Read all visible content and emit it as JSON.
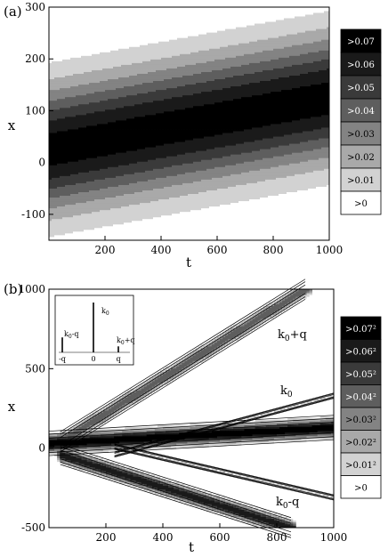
{
  "chart_data": [
    {
      "type": "heatmap",
      "panel_label": "(a)",
      "xlabel": "t",
      "ylabel": "x",
      "xlim": [
        0,
        1000
      ],
      "ylim": [
        -150,
        300
      ],
      "xticks": [
        "200",
        "400",
        "600",
        "800",
        "1000"
      ],
      "xtick_values": [
        200,
        400,
        600,
        800,
        1000
      ],
      "yticks": [
        "-100",
        "0",
        "100",
        "200",
        "300"
      ],
      "ytick_values": [
        -100,
        0,
        100,
        200,
        300
      ],
      "legend": [
        ">0.07",
        ">0.06",
        ">0.05",
        ">0.04",
        ">0.03",
        ">0.02",
        ">0.01",
        ">0"
      ],
      "legend_colors": [
        "#000000",
        "#1a1a1a",
        "#3a3a3a",
        "#5e5e5e",
        "#838383",
        "#a9a9a9",
        "#d2d2d2",
        "#ffffff"
      ],
      "bands": [
        {
          "name": "",
          "level": 0.075,
          "t0": 0,
          "x0": 25,
          "t1": 1000,
          "x1": 125,
          "core_halfwidth": 0,
          "halfwidth": 130,
          "peak": 0.075
        }
      ]
    },
    {
      "type": "heatmap",
      "panel_label": "(b)",
      "xlabel": "t",
      "ylabel": "x",
      "xlim": [
        0,
        1000
      ],
      "ylim": [
        -500,
        1000
      ],
      "xticks": [
        "200",
        "400",
        "600",
        "800",
        "1000"
      ],
      "xtick_values": [
        200,
        400,
        600,
        800,
        1000
      ],
      "yticks": [
        "-500",
        "0",
        "500",
        "1000"
      ],
      "ytick_values": [
        -500,
        0,
        500,
        1000
      ],
      "legend": [
        ">0.07²",
        ">0.06²",
        ">0.05²",
        ">0.04²",
        ">0.03²",
        ">0.02²",
        ">0.01²",
        ">0"
      ],
      "legend_colors": [
        "#000000",
        "#1a1a1a",
        "#3a3a3a",
        "#5e5e5e",
        "#838383",
        "#a9a9a9",
        "#d2d2d2",
        "#ffffff"
      ],
      "bands": [
        {
          "name": "k0+q",
          "t0": 40,
          "x0": 40,
          "t1": 900,
          "x1": 1000,
          "halfwidth": 45,
          "peak": 0.05
        },
        {
          "name": "k0",
          "t0": 0,
          "x0": 30,
          "t1": 1000,
          "x1": 130,
          "halfwidth": 55,
          "peak": 0.08
        },
        {
          "name": "k0-q",
          "t0": 40,
          "x0": -40,
          "t1": 850,
          "x1": -500,
          "halfwidth": 45,
          "peak": 0.07
        },
        {
          "name": "",
          "t0": 230,
          "x0": -40,
          "t1": 1000,
          "x1": 330,
          "halfwidth": 12,
          "peak": 0.012
        },
        {
          "name": "",
          "t0": 230,
          "x0": 10,
          "t1": 1000,
          "x1": -310,
          "halfwidth": 12,
          "peak": 0.012
        }
      ],
      "annotations": {
        "upper": {
          "k": "k",
          "sub": "0",
          "rest": "+q"
        },
        "middle": {
          "k": "k",
          "sub": "0",
          "rest": ""
        },
        "lower": {
          "k": "k",
          "sub": "0",
          "rest": "-q"
        }
      },
      "inset": {
        "type": "bar",
        "xticks": [
          "-q",
          "0",
          "q"
        ],
        "peak_labels": [
          {
            "k": "k",
            "sub": "0",
            "rest": "-q"
          },
          {
            "k": "k",
            "sub": "0",
            "rest": ""
          },
          {
            "k": "k",
            "sub": "0",
            "rest": "+q"
          }
        ],
        "values": [
          0.3,
          1.0,
          0.12
        ]
      }
    }
  ]
}
